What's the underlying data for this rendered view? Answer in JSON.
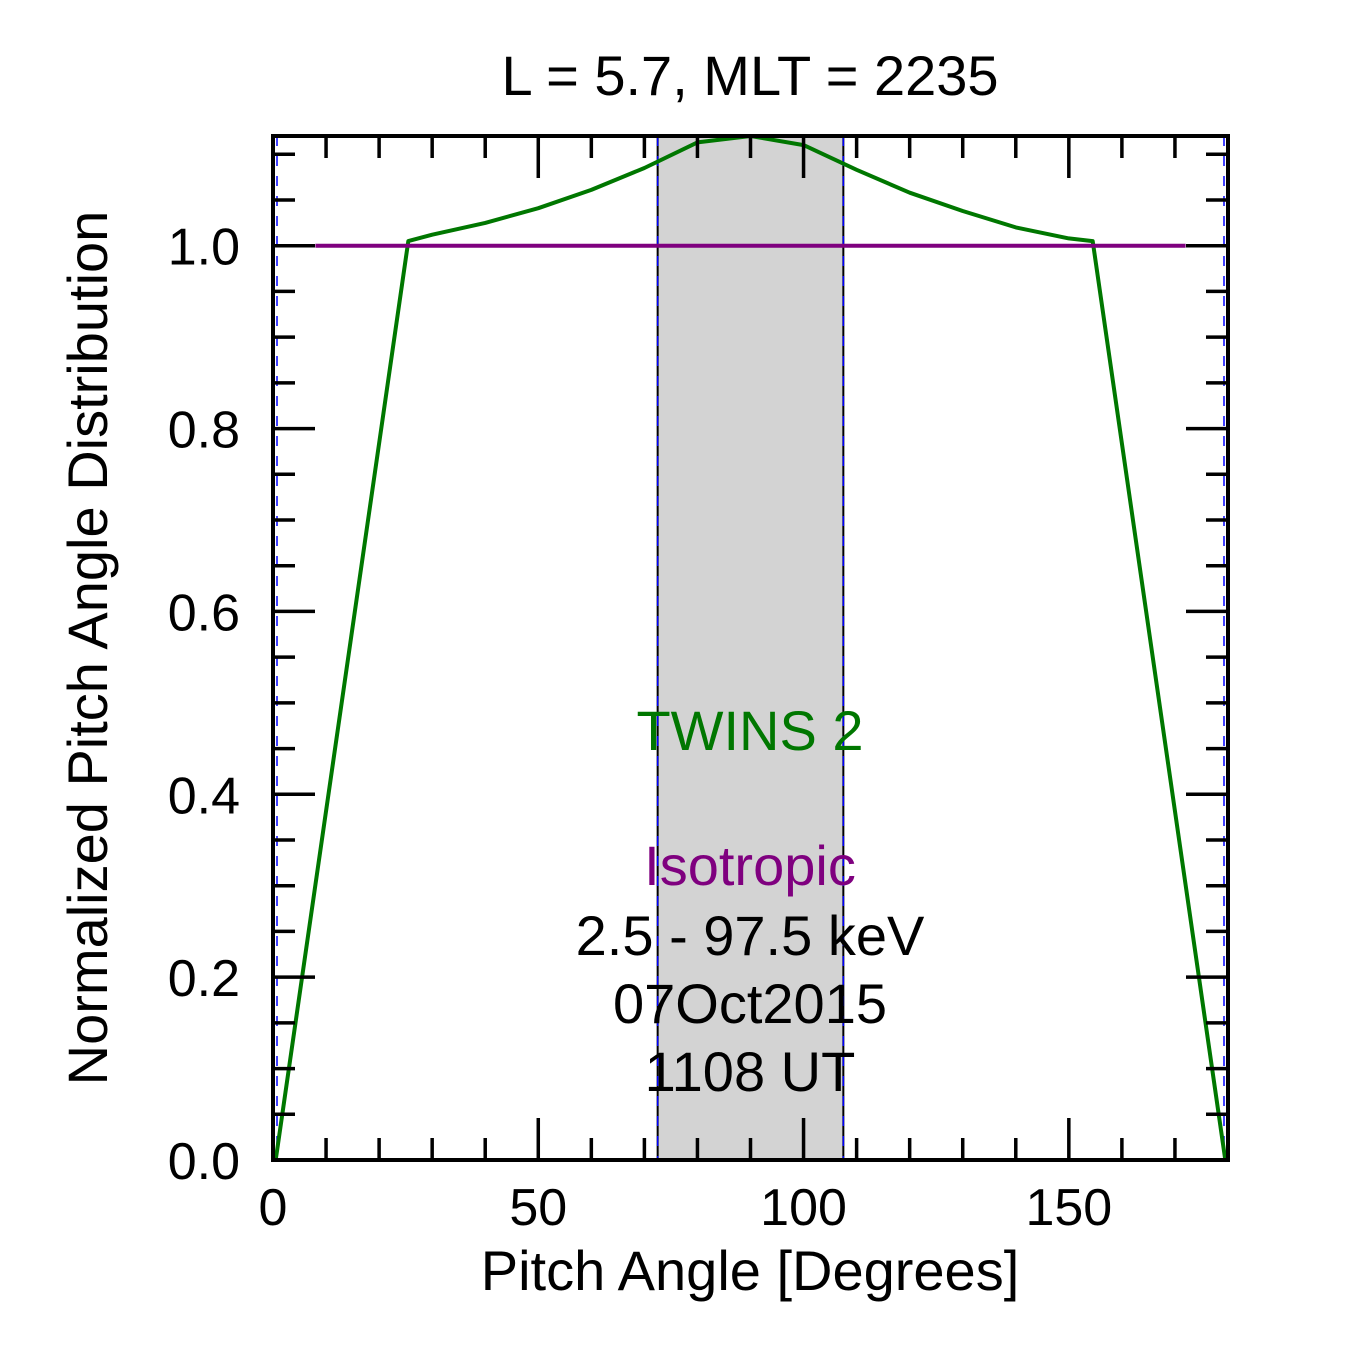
{
  "chart_data": {
    "type": "line",
    "title": "L =  5.7, MLT = 2235",
    "xlabel": "Pitch Angle [Degrees]",
    "ylabel": "Normalized Pitch Angle Distribution",
    "xlim": [
      0,
      180
    ],
    "ylim": [
      0,
      1.12
    ],
    "x_ticks": [
      0,
      50,
      100,
      150
    ],
    "x_tick_labels": [
      "0",
      "50",
      "100",
      "150"
    ],
    "x_minor_step": 10,
    "y_ticks": [
      0.0,
      0.2,
      0.4,
      0.6,
      0.8,
      1.0
    ],
    "y_tick_labels": [
      "0.0",
      "0.2",
      "0.4",
      "0.6",
      "0.8",
      "1.0"
    ],
    "y_minor_step": 0.05,
    "grid": false,
    "shaded_band": {
      "x_range": [
        72.5,
        107.5
      ],
      "color": "#d3d3d3"
    },
    "series": [
      {
        "name": "TWINS 2",
        "color": "#007700",
        "x": [
          0.5,
          25.5,
          30,
          40,
          50,
          60,
          70,
          80,
          90,
          100,
          110,
          120,
          130,
          140,
          150,
          154.5,
          179.5
        ],
        "y": [
          0.0,
          1.005,
          1.012,
          1.025,
          1.041,
          1.061,
          1.085,
          1.113,
          1.12,
          1.11,
          1.083,
          1.058,
          1.038,
          1.02,
          1.008,
          1.005,
          0.0
        ]
      },
      {
        "name": "Isotropic",
        "color": "#7f007f",
        "x": [
          8,
          172
        ],
        "y": [
          1.0,
          1.0
        ]
      }
    ],
    "annotations": {
      "series_label_1": "TWINS 2",
      "series_label_2": "Isotropic",
      "energy_range": "2.5 - 97.5 keV",
      "date": "07Oct2015",
      "time": "1108 UT"
    },
    "colors": {
      "axis": "#000000",
      "band_edge_blue": "#0000ff",
      "twins": "#007700",
      "isotropic": "#7f007f"
    }
  }
}
